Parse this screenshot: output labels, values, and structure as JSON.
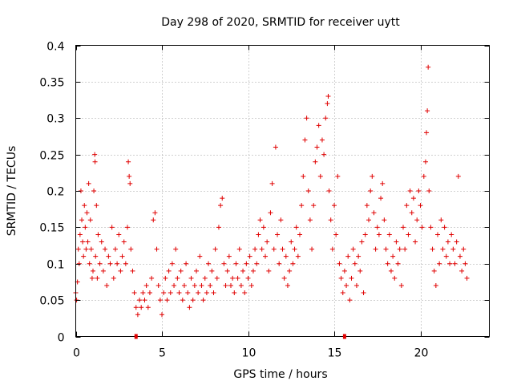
{
  "chart_data": {
    "type": "scatter",
    "title": "Day 298 of 2020, SRMTID for receiver uytt",
    "xlabel": "GPS time / hours",
    "ylabel": "SRMTID / TECUs",
    "xlim": [
      0,
      24
    ],
    "ylim": [
      0,
      0.4
    ],
    "x_ticks": [
      0,
      5,
      10,
      15,
      20
    ],
    "y_ticks": [
      0,
      0.05,
      0.1,
      0.15,
      0.2,
      0.25,
      0.3,
      0.35,
      0.4
    ],
    "x_tick_labels": [
      "0",
      "5",
      "10",
      "15",
      "20"
    ],
    "y_tick_labels": [
      "0",
      "0.05",
      "0.1",
      "0.15",
      "0.2",
      "0.25",
      "0.3",
      "0.35",
      "0.4"
    ],
    "grid": true,
    "marker": "+",
    "color": "#e00000",
    "series": [
      {
        "name": "SRMTID",
        "points": [
          [
            0.0,
            0.06
          ],
          [
            0.05,
            0.05
          ],
          [
            0.1,
            0.075
          ],
          [
            0.15,
            0.12
          ],
          [
            0.2,
            0.1
          ],
          [
            0.25,
            0.14
          ],
          [
            0.3,
            0.2
          ],
          [
            0.35,
            0.16
          ],
          [
            0.4,
            0.13
          ],
          [
            0.45,
            0.11
          ],
          [
            0.5,
            0.18
          ],
          [
            0.55,
            0.15
          ],
          [
            0.6,
            0.12
          ],
          [
            0.65,
            0.17
          ],
          [
            0.7,
            0.13
          ],
          [
            0.75,
            0.21
          ],
          [
            0.8,
            0.1
          ],
          [
            0.85,
            0.16
          ],
          [
            0.9,
            0.12
          ],
          [
            0.95,
            0.08
          ],
          [
            1.0,
            0.09
          ],
          [
            1.05,
            0.2
          ],
          [
            1.1,
            0.25
          ],
          [
            1.12,
            0.24
          ],
          [
            1.15,
            0.11
          ],
          [
            1.2,
            0.18
          ],
          [
            1.25,
            0.08
          ],
          [
            1.3,
            0.14
          ],
          [
            1.4,
            0.1
          ],
          [
            1.5,
            0.13
          ],
          [
            1.6,
            0.09
          ],
          [
            1.7,
            0.12
          ],
          [
            1.8,
            0.07
          ],
          [
            1.9,
            0.11
          ],
          [
            2.0,
            0.1
          ],
          [
            2.1,
            0.15
          ],
          [
            2.2,
            0.08
          ],
          [
            2.3,
            0.12
          ],
          [
            2.4,
            0.1
          ],
          [
            2.5,
            0.14
          ],
          [
            2.6,
            0.09
          ],
          [
            2.7,
            0.11
          ],
          [
            2.8,
            0.13
          ],
          [
            2.9,
            0.1
          ],
          [
            3.0,
            0.15
          ],
          [
            3.05,
            0.24
          ],
          [
            3.1,
            0.22
          ],
          [
            3.15,
            0.21
          ],
          [
            3.2,
            0.12
          ],
          [
            3.3,
            0.09
          ],
          [
            3.4,
            0.06
          ],
          [
            3.5,
            0.04
          ],
          [
            3.6,
            0.03
          ],
          [
            3.7,
            0.05
          ],
          [
            3.8,
            0.04
          ],
          [
            3.9,
            0.06
          ],
          [
            4.0,
            0.05
          ],
          [
            4.1,
            0.07
          ],
          [
            4.2,
            0.04
          ],
          [
            4.3,
            0.06
          ],
          [
            4.4,
            0.08
          ],
          [
            4.5,
            0.16
          ],
          [
            4.6,
            0.17
          ],
          [
            4.7,
            0.12
          ],
          [
            4.8,
            0.07
          ],
          [
            4.9,
            0.05
          ],
          [
            5.0,
            0.03
          ],
          [
            5.1,
            0.06
          ],
          [
            5.2,
            0.08
          ],
          [
            5.3,
            0.05
          ],
          [
            5.4,
            0.09
          ],
          [
            5.5,
            0.06
          ],
          [
            5.6,
            0.1
          ],
          [
            5.7,
            0.07
          ],
          [
            5.8,
            0.12
          ],
          [
            5.9,
            0.08
          ],
          [
            6.0,
            0.06
          ],
          [
            6.1,
            0.09
          ],
          [
            6.2,
            0.05
          ],
          [
            6.3,
            0.07
          ],
          [
            6.4,
            0.1
          ],
          [
            6.5,
            0.06
          ],
          [
            6.6,
            0.04
          ],
          [
            6.7,
            0.08
          ],
          [
            6.8,
            0.05
          ],
          [
            6.9,
            0.07
          ],
          [
            7.0,
            0.09
          ],
          [
            7.1,
            0.06
          ],
          [
            7.2,
            0.11
          ],
          [
            7.3,
            0.07
          ],
          [
            7.4,
            0.05
          ],
          [
            7.5,
            0.08
          ],
          [
            7.6,
            0.06
          ],
          [
            7.7,
            0.1
          ],
          [
            7.8,
            0.07
          ],
          [
            7.9,
            0.09
          ],
          [
            8.0,
            0.06
          ],
          [
            8.1,
            0.12
          ],
          [
            8.2,
            0.08
          ],
          [
            8.3,
            0.15
          ],
          [
            8.4,
            0.18
          ],
          [
            8.5,
            0.19
          ],
          [
            8.6,
            0.1
          ],
          [
            8.7,
            0.07
          ],
          [
            8.8,
            0.09
          ],
          [
            8.9,
            0.11
          ],
          [
            9.0,
            0.07
          ],
          [
            9.1,
            0.08
          ],
          [
            9.2,
            0.06
          ],
          [
            9.3,
            0.1
          ],
          [
            9.4,
            0.08
          ],
          [
            9.5,
            0.12
          ],
          [
            9.6,
            0.07
          ],
          [
            9.7,
            0.09
          ],
          [
            9.8,
            0.06
          ],
          [
            9.9,
            0.1
          ],
          [
            10.0,
            0.08
          ],
          [
            10.1,
            0.11
          ],
          [
            10.2,
            0.07
          ],
          [
            10.3,
            0.09
          ],
          [
            10.4,
            0.12
          ],
          [
            10.5,
            0.1
          ],
          [
            10.6,
            0.14
          ],
          [
            10.7,
            0.16
          ],
          [
            10.8,
            0.12
          ],
          [
            10.9,
            0.15
          ],
          [
            11.0,
            0.11
          ],
          [
            11.1,
            0.13
          ],
          [
            11.2,
            0.09
          ],
          [
            11.3,
            0.17
          ],
          [
            11.4,
            0.21
          ],
          [
            11.5,
            0.12
          ],
          [
            11.6,
            0.26
          ],
          [
            11.7,
            0.14
          ],
          [
            11.8,
            0.1
          ],
          [
            11.9,
            0.16
          ],
          [
            12.0,
            0.12
          ],
          [
            12.1,
            0.08
          ],
          [
            12.2,
            0.11
          ],
          [
            12.3,
            0.07
          ],
          [
            12.4,
            0.09
          ],
          [
            12.5,
            0.13
          ],
          [
            12.6,
            0.1
          ],
          [
            12.7,
            0.12
          ],
          [
            12.8,
            0.15
          ],
          [
            12.9,
            0.11
          ],
          [
            13.0,
            0.14
          ],
          [
            13.1,
            0.18
          ],
          [
            13.2,
            0.22
          ],
          [
            13.3,
            0.27
          ],
          [
            13.4,
            0.3
          ],
          [
            13.5,
            0.2
          ],
          [
            13.6,
            0.16
          ],
          [
            13.7,
            0.12
          ],
          [
            13.8,
            0.18
          ],
          [
            13.9,
            0.24
          ],
          [
            14.0,
            0.26
          ],
          [
            14.1,
            0.29
          ],
          [
            14.2,
            0.22
          ],
          [
            14.3,
            0.27
          ],
          [
            14.4,
            0.25
          ],
          [
            14.5,
            0.3
          ],
          [
            14.6,
            0.32
          ],
          [
            14.65,
            0.33
          ],
          [
            14.7,
            0.2
          ],
          [
            14.8,
            0.16
          ],
          [
            14.9,
            0.12
          ],
          [
            15.0,
            0.18
          ],
          [
            15.1,
            0.14
          ],
          [
            15.2,
            0.22
          ],
          [
            15.3,
            0.1
          ],
          [
            15.4,
            0.08
          ],
          [
            15.5,
            0.06
          ],
          [
            15.6,
            0.09
          ],
          [
            15.7,
            0.07
          ],
          [
            15.8,
            0.11
          ],
          [
            15.9,
            0.05
          ],
          [
            16.0,
            0.08
          ],
          [
            16.1,
            0.12
          ],
          [
            16.2,
            0.1
          ],
          [
            16.3,
            0.07
          ],
          [
            16.4,
            0.11
          ],
          [
            16.5,
            0.09
          ],
          [
            16.6,
            0.13
          ],
          [
            16.7,
            0.06
          ],
          [
            16.8,
            0.14
          ],
          [
            16.9,
            0.18
          ],
          [
            17.0,
            0.16
          ],
          [
            17.1,
            0.2
          ],
          [
            17.2,
            0.22
          ],
          [
            17.3,
            0.17
          ],
          [
            17.4,
            0.12
          ],
          [
            17.5,
            0.15
          ],
          [
            17.6,
            0.14
          ],
          [
            17.7,
            0.19
          ],
          [
            17.8,
            0.21
          ],
          [
            17.9,
            0.16
          ],
          [
            18.0,
            0.12
          ],
          [
            18.1,
            0.1
          ],
          [
            18.2,
            0.14
          ],
          [
            18.3,
            0.09
          ],
          [
            18.4,
            0.11
          ],
          [
            18.5,
            0.08
          ],
          [
            18.6,
            0.13
          ],
          [
            18.7,
            0.1
          ],
          [
            18.8,
            0.12
          ],
          [
            18.9,
            0.07
          ],
          [
            19.0,
            0.15
          ],
          [
            19.1,
            0.12
          ],
          [
            19.2,
            0.18
          ],
          [
            19.3,
            0.14
          ],
          [
            19.4,
            0.2
          ],
          [
            19.5,
            0.17
          ],
          [
            19.6,
            0.19
          ],
          [
            19.7,
            0.13
          ],
          [
            19.8,
            0.16
          ],
          [
            19.9,
            0.2
          ],
          [
            20.0,
            0.18
          ],
          [
            20.1,
            0.15
          ],
          [
            20.2,
            0.22
          ],
          [
            20.3,
            0.24
          ],
          [
            20.35,
            0.28
          ],
          [
            20.4,
            0.31
          ],
          [
            20.45,
            0.37
          ],
          [
            20.5,
            0.2
          ],
          [
            20.6,
            0.15
          ],
          [
            20.7,
            0.12
          ],
          [
            20.8,
            0.09
          ],
          [
            20.9,
            0.07
          ],
          [
            21.0,
            0.14
          ],
          [
            21.1,
            0.1
          ],
          [
            21.2,
            0.16
          ],
          [
            21.3,
            0.12
          ],
          [
            21.4,
            0.15
          ],
          [
            21.5,
            0.11
          ],
          [
            21.6,
            0.13
          ],
          [
            21.7,
            0.1
          ],
          [
            21.8,
            0.14
          ],
          [
            21.9,
            0.12
          ],
          [
            22.0,
            0.1
          ],
          [
            22.1,
            0.13
          ],
          [
            22.2,
            0.22
          ],
          [
            22.3,
            0.11
          ],
          [
            22.4,
            0.09
          ],
          [
            22.5,
            0.12
          ],
          [
            22.6,
            0.1
          ],
          [
            22.7,
            0.08
          ]
        ]
      }
    ],
    "x_axis_markers": [
      3.5,
      15.6
    ]
  }
}
